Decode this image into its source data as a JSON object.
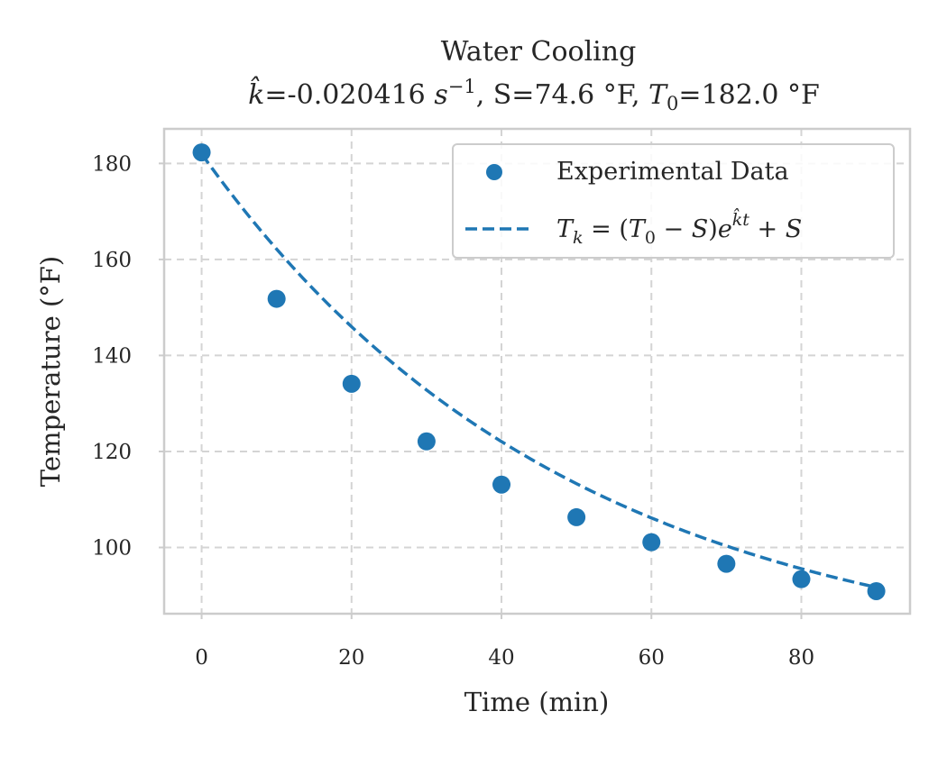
{
  "chart_data": {
    "type": "scatter",
    "title": "Water Cooling",
    "subtitle": {
      "k_hat": "-0.020416",
      "k_unit": "s",
      "k_unit_exp": "−1",
      "S": "74.6",
      "T0": "182.0",
      "unit": "°F"
    },
    "xlabel": "Time (min)",
    "ylabel": "Temperature (°F)",
    "xlim": [
      -5,
      94.5
    ],
    "ylim": [
      86.2,
      187.2
    ],
    "xticks": [
      0,
      20,
      40,
      60,
      80
    ],
    "yticks": [
      100,
      120,
      140,
      160,
      180
    ],
    "grid": true,
    "legend_position": "upper-right",
    "series": [
      {
        "name": "Experimental Data",
        "kind": "scatter",
        "color": "#1f77b4",
        "x": [
          0,
          10,
          20,
          30,
          40,
          50,
          60,
          70,
          80,
          90
        ],
        "y": [
          182.3,
          151.8,
          134.1,
          122.1,
          113.1,
          106.3,
          101.1,
          96.6,
          93.4,
          90.9
        ]
      },
      {
        "name": "T_k = (T_0 − S)e^{k̂t} + S",
        "kind": "line",
        "style": "dashed",
        "color": "#1f77b4",
        "model": {
          "T0": 182.0,
          "S": 74.6,
          "k": -0.020416
        }
      }
    ]
  }
}
